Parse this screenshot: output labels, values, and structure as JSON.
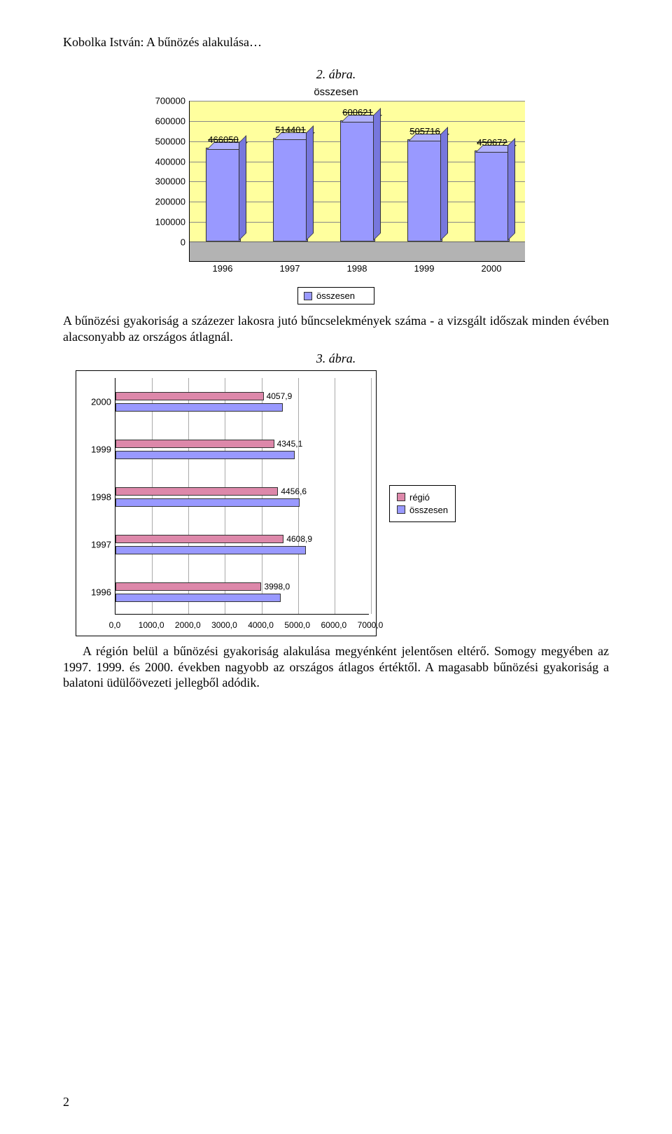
{
  "header": "Kobolka István: A bűnözés alakulása…",
  "fig2_caption": "2. ábra.",
  "fig3_caption": "3. ábra.",
  "chart1": {
    "title": "összesen",
    "legend_label": "összesen",
    "ymax": 700000,
    "ystep": 100000,
    "categories": [
      "1996",
      "1997",
      "1998",
      "1999",
      "2000"
    ],
    "values": [
      466050,
      514401,
      600621,
      505716,
      450672
    ],
    "labels": [
      "466050",
      "514401",
      "600621",
      "505716",
      "450672"
    ],
    "yticks": [
      "0",
      "100000",
      "200000",
      "300000",
      "400000",
      "500000",
      "600000",
      "700000"
    ],
    "bar_color": "#9999ff",
    "bg_color": "#ffff9e"
  },
  "para1": "A bűnözési gyakoriság a százezer lakosra jutó bűncselekmények száma - a vizsgált időszak minden évében alacsonyabb az országos átlagnál.",
  "chart2": {
    "xmax": 7000,
    "xstep": 1000,
    "categories": [
      "2000",
      "1999",
      "1998",
      "1997",
      "1996"
    ],
    "regio": [
      4057.9,
      4345.1,
      4456.6,
      4608.9,
      3998.0
    ],
    "regio_labels": [
      "4057,9",
      "4345,1",
      "4456,6",
      "4608,9",
      "3998,0"
    ],
    "xticks": [
      "0,0",
      "1000,0",
      "2000,0",
      "3000,0",
      "4000,0",
      "5000,0",
      "6000,0",
      "7000,0"
    ],
    "legend": {
      "regio": "régió",
      "osszes": "összesen"
    },
    "regio_color": "#dd88aa",
    "osszes_color": "#9999ff",
    "osszes_factor": 1.13
  },
  "para2": "A régión belül a bűnözési gyakoriság alakulása megyénként jelentősen eltérő. Somogy megyében az 1997. 1999. és 2000. években nagyobb az országos átlagos értéktől. A magasabb bűnözési gyakoriság a balatoni üdülőövezeti jellegből adódik.",
  "page_number": "2"
}
